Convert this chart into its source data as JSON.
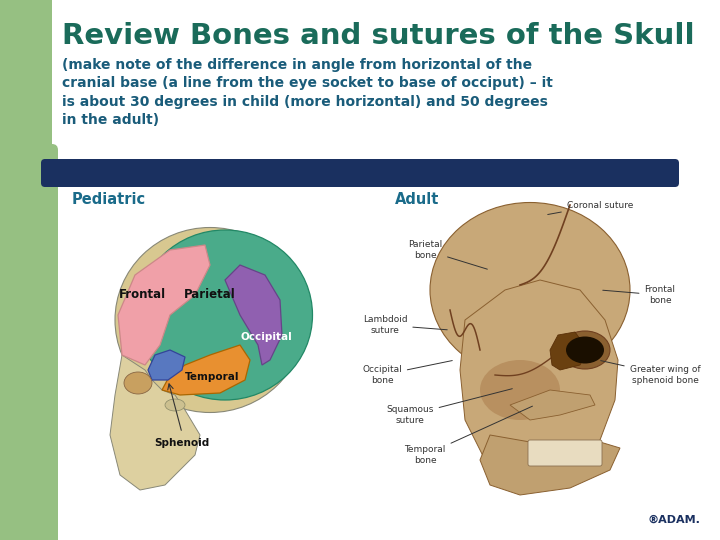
{
  "title": "Review Bones and sutures of the Skull",
  "subtitle": "(make note of the difference in angle from horizontal of the\ncranial base (a line from the eye socket to base of occiput) – it\nis about 30 degrees in child (more horizontal) and 50 degrees\nin the adult)",
  "label_pediatric": "Pediatric",
  "label_adult": "Adult",
  "bg_color": "#ffffff",
  "left_panel_color": "#96c082",
  "title_color": "#1a6b5a",
  "subtitle_color": "#1a5c7a",
  "divider_color": "#1a3060",
  "label_color": "#1a6b8a",
  "title_fontsize": 21,
  "subtitle_fontsize": 10,
  "label_fontsize": 10.5,
  "adam_color": "#1a3060",
  "parietal_color": "#4aab8a",
  "frontal_color": "#f0a0a8",
  "occipital_color": "#9060b0",
  "temporal_color": "#e89030",
  "sphenoid_color": "#5878c0",
  "skull_base_color": "#d8c890",
  "adult_skull_color": "#c8a878",
  "adult_skull_dark": "#8a6030",
  "annotation_color": "#333333"
}
